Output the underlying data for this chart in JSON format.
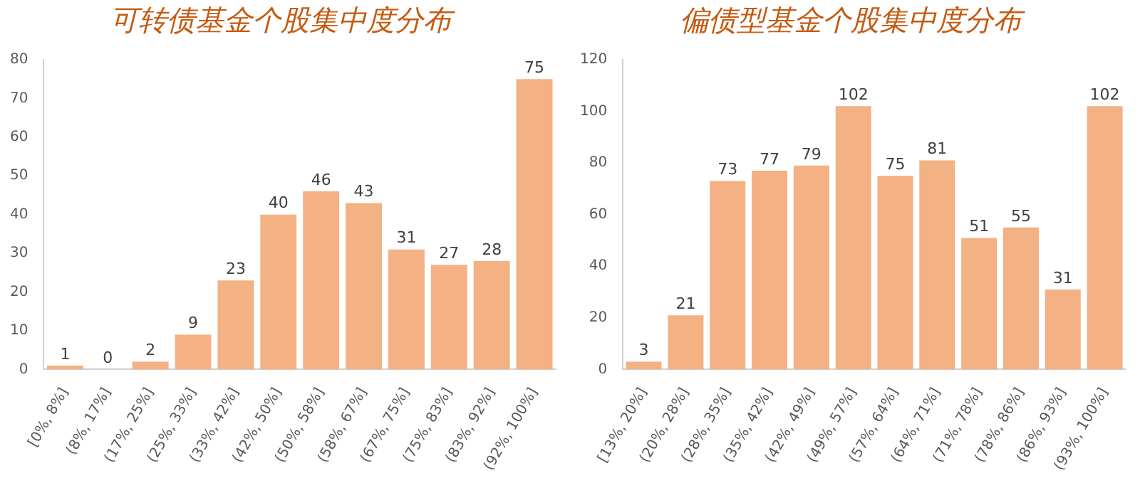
{
  "chart_data": [
    {
      "type": "bar",
      "title": "可转债基金个股集中度分布",
      "categories": [
        "[0%, 8%]",
        "(8%, 17%]",
        "(17%, 25%]",
        "(25%, 33%]",
        "(33%, 42%]",
        "(42%, 50%]",
        "(50%, 58%]",
        "(58%, 67%]",
        "(67%, 75%]",
        "(75%, 83%]",
        "(83%, 92%]",
        "(92%, 100%]"
      ],
      "values": [
        1,
        0,
        2,
        9,
        23,
        40,
        46,
        43,
        31,
        27,
        28,
        75
      ],
      "color": "#f4b183",
      "ylim": [
        0,
        80
      ],
      "yticks": [
        0,
        10,
        20,
        30,
        40,
        50,
        60,
        70,
        80
      ],
      "grid": false,
      "data_labels": true
    },
    {
      "type": "bar",
      "title": "偏债型基金个股集中度分布",
      "categories": [
        "[13%, 20%]",
        "(20%, 28%]",
        "(28%, 35%]",
        "(35%, 42%]",
        "(42%, 49%]",
        "(49%, 57%]",
        "(57%, 64%]",
        "(64%, 71%]",
        "(71%, 78%]",
        "(78%, 86%]",
        "(86%, 93%]",
        "(93%, 100%]"
      ],
      "values": [
        3,
        21,
        73,
        77,
        79,
        102,
        75,
        81,
        51,
        55,
        31,
        102
      ],
      "color": "#f4b183",
      "ylim": [
        0,
        120
      ],
      "yticks": [
        0,
        20,
        40,
        60,
        80,
        100,
        120
      ],
      "grid": false,
      "data_labels": true
    }
  ]
}
